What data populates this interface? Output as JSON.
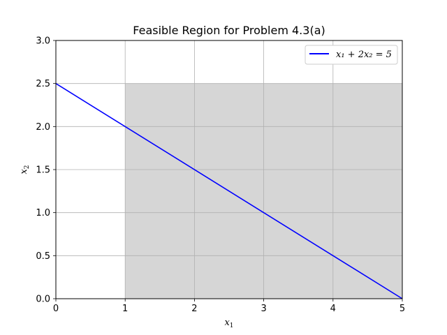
{
  "chart_data": {
    "type": "line",
    "title": "Feasible Region for Problem 4.3(a)",
    "xlabel": {
      "base": "x",
      "sub": "1"
    },
    "ylabel": {
      "base": "x",
      "sub": "2"
    },
    "xlim": [
      0,
      5
    ],
    "ylim": [
      0,
      3
    ],
    "xticks": [
      "0",
      "1",
      "2",
      "3",
      "4",
      "5"
    ],
    "yticks": [
      "0.0",
      "0.5",
      "1.0",
      "1.5",
      "2.0",
      "2.5",
      "3.0"
    ],
    "grid": true,
    "legend_position": "top-right",
    "series": [
      {
        "name": "x₁ + 2x₂ = 5",
        "color": "#0000ff",
        "x": [
          0,
          5
        ],
        "y": [
          2.5,
          0
        ]
      }
    ],
    "shaded_region": {
      "color": "#d6d6d6",
      "x": [
        1,
        5
      ],
      "y": [
        0,
        2.5
      ]
    }
  }
}
